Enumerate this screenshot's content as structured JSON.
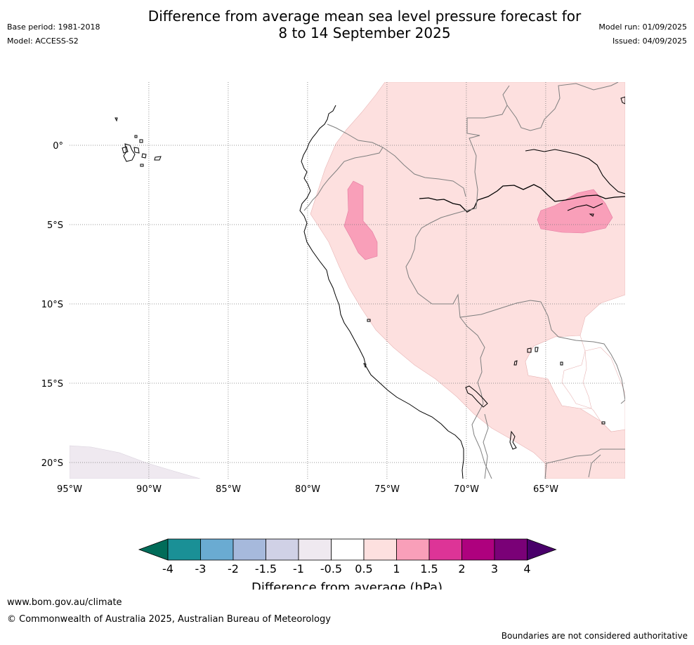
{
  "header": {
    "base_period": "Base period: 1981-2018",
    "model": "Model: ACCESS-S2",
    "title_line1": "Difference from average mean sea level pressure forecast for",
    "title_line2": "8 to 14 September 2025",
    "model_run": "Model run: 01/09/2025",
    "issued": "Issued: 04/09/2025"
  },
  "map": {
    "lon_ticks": [
      "95°W",
      "90°W",
      "85°W",
      "80°W",
      "75°W",
      "70°W",
      "65°W"
    ],
    "lat_ticks": [
      "0°",
      "5°S",
      "10°S",
      "15°S",
      "20°S"
    ]
  },
  "colorbar": {
    "title": "Difference from average (hPa)",
    "labels": [
      "-4",
      "-3",
      "-2",
      "-1.5",
      "-1",
      "-0.5",
      "0.5",
      "1",
      "1.5",
      "2",
      "3",
      "4"
    ],
    "colors": [
      "#1a9096",
      "#6aabd2",
      "#a6b9dc",
      "#d0d1e6",
      "#efe9f0",
      "#ffffff",
      "#fde0df",
      "#f99fb9",
      "#dd3497",
      "#ae017e",
      "#7a0177"
    ],
    "under_color": "#016c59",
    "over_color": "#49006a"
  },
  "footer": {
    "url": "www.bom.gov.au/climate",
    "copyright": "© Commonwealth of Australia 2025, Australian Bureau of Meteorology",
    "disclaimer": "Boundaries are not considered authoritative"
  }
}
